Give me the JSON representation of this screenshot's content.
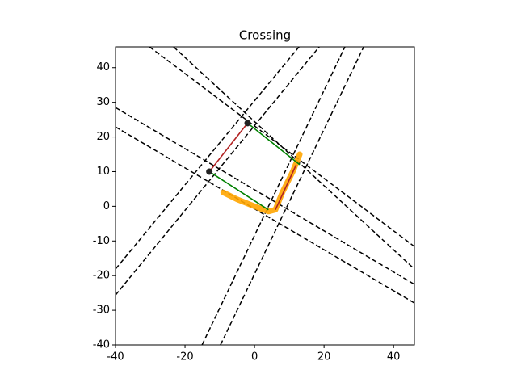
{
  "chart_data": {
    "type": "line",
    "title": "Crossing",
    "xlim": [
      -40,
      46
    ],
    "ylim": [
      -40,
      46
    ],
    "xticks": [
      -40,
      -20,
      0,
      20,
      40
    ],
    "yticks": [
      -40,
      -30,
      -20,
      -10,
      0,
      10,
      20,
      30,
      40
    ],
    "grid": false,
    "series": [
      {
        "color": "#000000",
        "style": "dashed",
        "x": [
          -30.2,
          46
        ],
        "values": [
          46,
          -11.6
        ]
      },
      {
        "color": "#000000",
        "style": "dashed",
        "x": [
          -23.3,
          46
        ],
        "values": [
          46,
          -18.1
        ]
      },
      {
        "color": "#000000",
        "style": "dashed",
        "x": [
          -40,
          46
        ],
        "values": [
          28.5,
          -22.5
        ]
      },
      {
        "color": "#000000",
        "style": "dashed",
        "x": [
          -40,
          46
        ],
        "values": [
          22.9,
          -27.9
        ]
      },
      {
        "color": "#000000",
        "style": "dashed",
        "x": [
          -40,
          12.8
        ],
        "values": [
          -18.1,
          46
        ]
      },
      {
        "color": "#000000",
        "style": "dashed",
        "x": [
          -40,
          18.6
        ],
        "values": [
          -25.6,
          46
        ]
      },
      {
        "color": "#000000",
        "style": "dashed",
        "x": [
          -15.1,
          26.0
        ],
        "values": [
          -40,
          46
        ]
      },
      {
        "color": "#000000",
        "style": "dashed",
        "x": [
          -9.8,
          31.4
        ],
        "values": [
          -40,
          46
        ]
      },
      {
        "color": "#ffa500",
        "style": "thick",
        "x": [
          -9,
          -5,
          0,
          4,
          6,
          8,
          11,
          13
        ],
        "values": [
          4,
          2,
          0,
          -1.5,
          -1,
          4,
          10,
          15
        ]
      },
      {
        "color": "#008000",
        "style": "solid",
        "x": [
          -2,
          13
        ],
        "values": [
          24,
          12
        ]
      },
      {
        "color": "#008000",
        "style": "solid",
        "x": [
          -13,
          4
        ],
        "values": [
          10,
          -1
        ]
      },
      {
        "color": "#b22222",
        "style": "solid",
        "x": [
          -13,
          -2
        ],
        "values": [
          10,
          24
        ]
      },
      {
        "color": "#b22222",
        "style": "solid",
        "x": [
          6,
          12
        ],
        "values": [
          -1,
          12
        ]
      },
      {
        "color": "#222222",
        "style": "points",
        "x": [
          -13,
          -2
        ],
        "values": [
          10,
          24
        ]
      }
    ]
  }
}
